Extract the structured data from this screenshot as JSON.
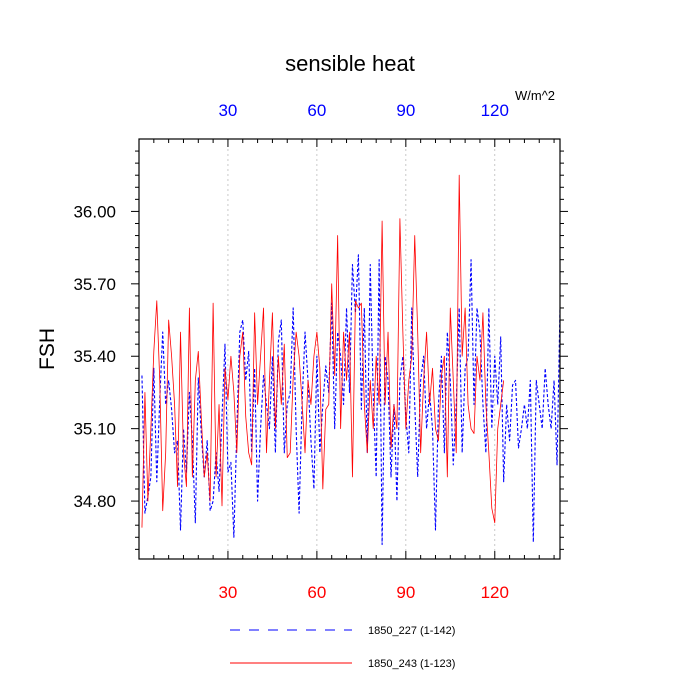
{
  "chart_data": {
    "type": "line",
    "title": "sensible heat",
    "ylabel": "FSH",
    "top_axis_units": "W/m^2",
    "xlim": [
      0,
      142
    ],
    "ylim": [
      34.56,
      36.3
    ],
    "yticks": [
      34.8,
      35.1,
      35.4,
      35.7,
      36.0
    ],
    "ytick_labels": [
      "34.80",
      "35.10",
      "35.40",
      "35.70",
      "36.00"
    ],
    "xticks": [
      30,
      60,
      90,
      120
    ],
    "xtick_labels": [
      "30",
      "60",
      "90",
      "120"
    ],
    "vertical_grid": true,
    "legend_position": "bottom",
    "colors": {
      "bottom_ticks": "#ff0000",
      "top_ticks": "#0000ff",
      "grid": "#bbbbbb"
    },
    "series": [
      {
        "name": "1850_227 (1-142)",
        "color": "#0000ff",
        "dash": "dashed",
        "x_start": 1,
        "values": [
          35.32,
          34.75,
          34.82,
          34.9,
          35.35,
          34.88,
          35.22,
          35.5,
          35.2,
          35.3,
          35.18,
          35.0,
          35.05,
          34.68,
          35.1,
          34.92,
          35.25,
          35.05,
          34.71,
          35.31,
          35.08,
          34.9,
          35.05,
          34.76,
          34.8,
          35.0,
          34.84,
          35.15,
          35.45,
          34.92,
          34.96,
          34.65,
          35.1,
          35.5,
          35.55,
          35.3,
          35.42,
          35.0,
          35.35,
          34.8,
          35.1,
          35.32,
          35.2,
          35.1,
          35.4,
          35.0,
          35.46,
          35.55,
          35.0,
          35.2,
          35.25,
          35.6,
          35.1,
          34.75,
          35.2,
          35.5,
          35.3,
          35.05,
          34.85,
          35.4,
          35.0,
          35.2,
          35.36,
          35.25,
          35.62,
          35.1,
          35.5,
          35.4,
          35.2,
          35.6,
          35.25,
          35.78,
          35.58,
          35.82,
          35.18,
          35.6,
          35.0,
          35.78,
          35.24,
          34.9,
          35.8,
          34.62,
          35.4,
          35.3,
          34.9,
          35.2,
          34.8,
          35.3,
          35.4,
          35.15,
          35.0,
          35.6,
          35.2,
          34.9,
          35.3,
          35.4,
          35.1,
          35.25,
          35.1,
          34.68,
          35.2,
          35.4,
          35.0,
          35.5,
          35.3,
          34.95,
          35.2,
          35.6,
          35.0,
          35.35,
          35.4,
          35.8,
          35.2,
          35.6,
          35.5,
          35.2,
          35.0,
          35.6,
          35.1,
          35.4,
          35.2,
          35.48,
          34.88,
          35.2,
          35.05,
          35.28,
          35.3,
          35.02,
          35.1,
          35.2,
          35.1,
          35.3,
          34.63,
          35.3,
          35.2,
          35.1,
          35.35,
          35.2,
          35.1,
          35.3,
          34.95,
          35.6
        ]
      },
      {
        "name": "1850_243 (1-123)",
        "color": "#ff0000",
        "dash": "solid",
        "x_start": 1,
        "values": [
          34.69,
          35.25,
          34.8,
          35.1,
          35.42,
          35.63,
          35.3,
          34.76,
          35.0,
          35.55,
          35.4,
          35.2,
          34.86,
          35.5,
          35.0,
          34.86,
          35.6,
          34.9,
          35.3,
          35.42,
          35.15,
          34.9,
          35.0,
          34.8,
          35.62,
          34.9,
          35.2,
          34.78,
          35.35,
          35.22,
          35.4,
          35.25,
          35.0,
          35.4,
          35.5,
          35.15,
          35.0,
          34.95,
          35.58,
          35.2,
          35.4,
          35.6,
          35.0,
          35.3,
          35.58,
          35.1,
          35.4,
          35.2,
          35.45,
          34.98,
          35.0,
          35.31,
          35.5,
          35.4,
          35.21,
          35.0,
          35.3,
          35.2,
          35.4,
          35.5,
          35.35,
          34.85,
          35.18,
          35.2,
          35.7,
          35.32,
          35.9,
          35.1,
          35.5,
          35.3,
          35.5,
          34.9,
          35.63,
          35.6,
          35.62,
          35.2,
          35.0,
          35.3,
          35.1,
          35.4,
          35.2,
          35.96,
          35.2,
          35.5,
          35.02,
          35.2,
          35.1,
          35.97,
          35.5,
          35.1,
          35.3,
          35.4,
          35.9,
          35.5,
          35.0,
          35.3,
          35.5,
          35.2,
          35.35,
          35.1,
          35.05,
          35.32,
          35.4,
          34.9,
          35.6,
          35.3,
          35.0,
          36.15,
          35.4,
          35.6,
          35.2,
          35.1,
          35.08,
          35.4,
          35.3,
          35.58,
          35.2,
          35.0,
          34.77,
          34.71,
          35.1,
          35.2,
          35.3
        ]
      }
    ]
  }
}
